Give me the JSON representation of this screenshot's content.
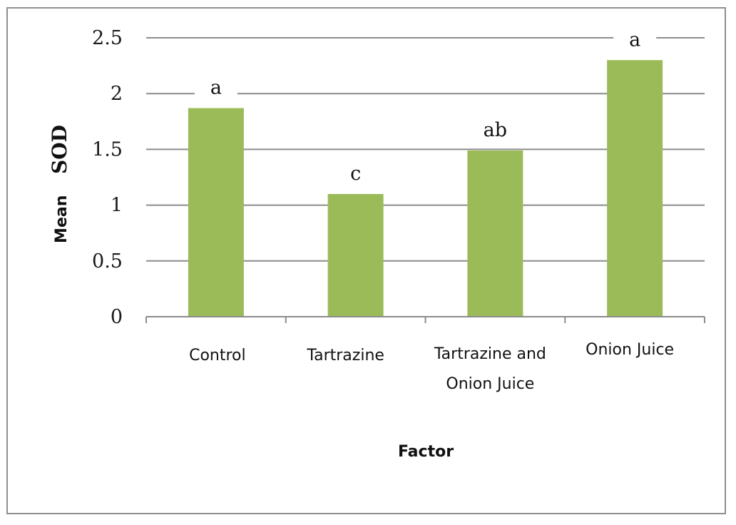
{
  "chart_data": {
    "type": "bar",
    "categories": [
      [
        "Control"
      ],
      [
        "Tartrazine"
      ],
      [
        "Tartrazine and",
        "Onion Juice"
      ],
      [
        "Onion Juice"
      ]
    ],
    "values": [
      1.87,
      1.1,
      1.49,
      2.3
    ],
    "significance_labels": [
      "a",
      "c",
      "ab",
      "a"
    ],
    "ylabel_parts": [
      "Mean",
      "SOD"
    ],
    "xlabel": "Factor",
    "ylim": [
      0,
      2.5
    ],
    "yticks": [
      "0",
      "0.5",
      "1",
      "1.5",
      "2",
      "2.5"
    ],
    "grid": true,
    "bar_color": "#9bbb59",
    "gridline_color": "#8c8c8c"
  }
}
